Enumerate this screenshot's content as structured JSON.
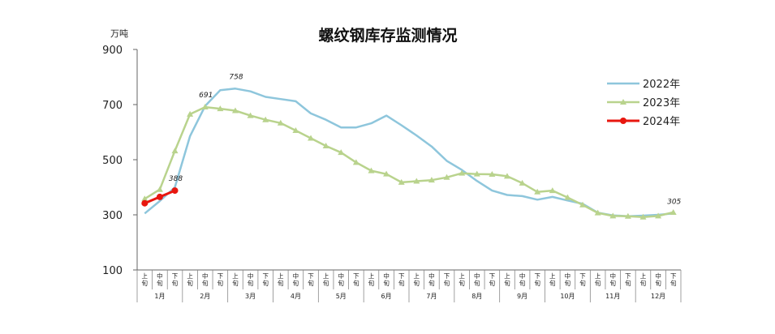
{
  "chart_data": {
    "type": "line",
    "title": "螺纹钢库存监测情况",
    "unit_label": "万吨",
    "yticks": [
      900,
      700,
      500,
      300,
      100
    ],
    "ylim": [
      100,
      900
    ],
    "grid": false,
    "legend_position": "right",
    "months": [
      "1月",
      "2月",
      "3月",
      "4月",
      "5月",
      "6月",
      "7月",
      "8月",
      "9月",
      "10月",
      "11月",
      "12月"
    ],
    "periods": [
      "上旬",
      "中旬",
      "下旬"
    ],
    "series": [
      {
        "name": "2022年",
        "color": "#8ec6dc",
        "marker": "none",
        "values": [
          305,
          350,
          400,
          585,
          695,
          752,
          758,
          748,
          728,
          720,
          712,
          668,
          645,
          617,
          617,
          632,
          660,
          625,
          588,
          548,
          496,
          463,
          423,
          388,
          372,
          368,
          355,
          365,
          352,
          340,
          308,
          298,
          295,
          297,
          300,
          305
        ]
      },
      {
        "name": "2023年",
        "color": "#b9d38d",
        "marker": "triangle",
        "values": [
          358,
          392,
          532,
          665,
          691,
          685,
          678,
          660,
          645,
          633,
          606,
          578,
          550,
          526,
          490,
          460,
          448,
          418,
          422,
          426,
          436,
          451,
          448,
          447,
          440,
          415,
          383,
          388,
          363,
          336,
          307,
          296,
          295,
          292,
          296,
          309
        ]
      },
      {
        "name": "2024年",
        "color": "#e8170f",
        "marker": "circle",
        "values": [
          342,
          365,
          388
        ]
      }
    ],
    "annotations": [
      {
        "text": "388",
        "series": "2024年",
        "index": 2
      },
      {
        "text": "691",
        "series": "2023年",
        "index": 4
      },
      {
        "text": "758",
        "series": "2022年",
        "index": 6
      },
      {
        "text": "305",
        "series": "2022年",
        "index": 35
      }
    ]
  }
}
